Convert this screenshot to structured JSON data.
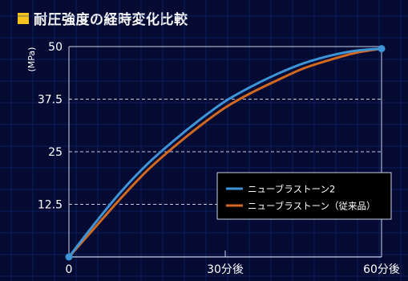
{
  "chart_data": {
    "type": "line",
    "title": "耐圧強度の経時変化比較",
    "ylabel": "(MPa)",
    "ylim": [
      0,
      50
    ],
    "xlim": [
      0,
      60
    ],
    "y_ticks": [
      {
        "value": 0,
        "label": "0"
      },
      {
        "value": 12.5,
        "label": "12.5"
      },
      {
        "value": 25,
        "label": "25"
      },
      {
        "value": 37.5,
        "label": "37.5"
      },
      {
        "value": 50,
        "label": "50"
      }
    ],
    "x_ticks": [
      {
        "value": 0,
        "label": "0"
      },
      {
        "value": 30,
        "label": "30分後"
      },
      {
        "value": 60,
        "label": "60分後"
      }
    ],
    "grid": "dashed horizontal at y ticks",
    "legend_position": "bottom-right",
    "series": [
      {
        "name": "ニューブラストーン2",
        "color": "#3d95d8",
        "x": [
          0,
          5,
          10,
          15,
          20,
          25,
          30,
          35,
          40,
          45,
          50,
          55,
          60
        ],
        "y": [
          0,
          8,
          15.5,
          22,
          27.5,
          32.5,
          37,
          40.5,
          43.5,
          46,
          47.8,
          49,
          49.5
        ]
      },
      {
        "name": "ニューブラストーン（従来品）",
        "color": "#d2691e",
        "x": [
          0,
          5,
          10,
          15,
          20,
          25,
          30,
          35,
          40,
          45,
          50,
          55,
          60
        ],
        "y": [
          0,
          7,
          14,
          20.5,
          26,
          31,
          35.5,
          39,
          42,
          44.8,
          46.8,
          48.5,
          49.5
        ]
      }
    ]
  }
}
